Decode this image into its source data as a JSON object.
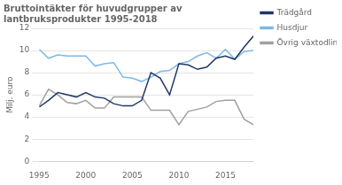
{
  "chart_data": {
    "type": "line",
    "title": [
      "Bruttointäkter för huvudgrupper av",
      "lantbruksprodukter 1995-2018"
    ],
    "ylabel": "Milj. euro",
    "x": [
      1995,
      1996,
      1997,
      1998,
      1999,
      2000,
      2001,
      2002,
      2003,
      2004,
      2005,
      2006,
      2007,
      2008,
      2009,
      2010,
      2011,
      2012,
      2013,
      2014,
      2015,
      2016,
      2017,
      2018
    ],
    "series": [
      {
        "name": "Trädgård",
        "color": "#1f3864",
        "values": [
          4.9,
          5.5,
          6.2,
          6.0,
          5.8,
          6.2,
          5.8,
          5.7,
          5.2,
          5.0,
          5.0,
          5.5,
          8.0,
          7.5,
          6.0,
          8.8,
          8.7,
          8.3,
          8.5,
          9.3,
          9.5,
          9.2,
          10.3,
          11.3
        ]
      },
      {
        "name": "Husdjur",
        "color": "#7db8e8",
        "values": [
          10.1,
          9.3,
          9.6,
          9.5,
          9.5,
          9.5,
          8.6,
          8.8,
          8.9,
          7.6,
          7.5,
          7.2,
          7.6,
          8.1,
          8.2,
          8.8,
          9.0,
          9.5,
          9.8,
          9.3,
          10.1,
          9.2,
          9.9,
          10.0
        ]
      },
      {
        "name": "Övrig växtodling",
        "color": "#a0a0a0",
        "values": [
          5.0,
          6.5,
          6.0,
          5.3,
          5.2,
          5.5,
          4.8,
          4.8,
          5.8,
          5.8,
          5.8,
          5.8,
          4.6,
          4.6,
          4.6,
          3.3,
          4.5,
          4.7,
          4.9,
          5.4,
          5.5,
          5.5,
          3.8,
          3.3
        ]
      }
    ],
    "xlim": [
      1995,
      2018
    ],
    "xticks": [
      1995,
      2000,
      2005,
      2010,
      2015
    ],
    "ylim": [
      0,
      12
    ],
    "yticks": [
      0,
      2,
      4,
      6,
      8,
      10,
      12
    ],
    "grid": true,
    "legend": "right"
  }
}
